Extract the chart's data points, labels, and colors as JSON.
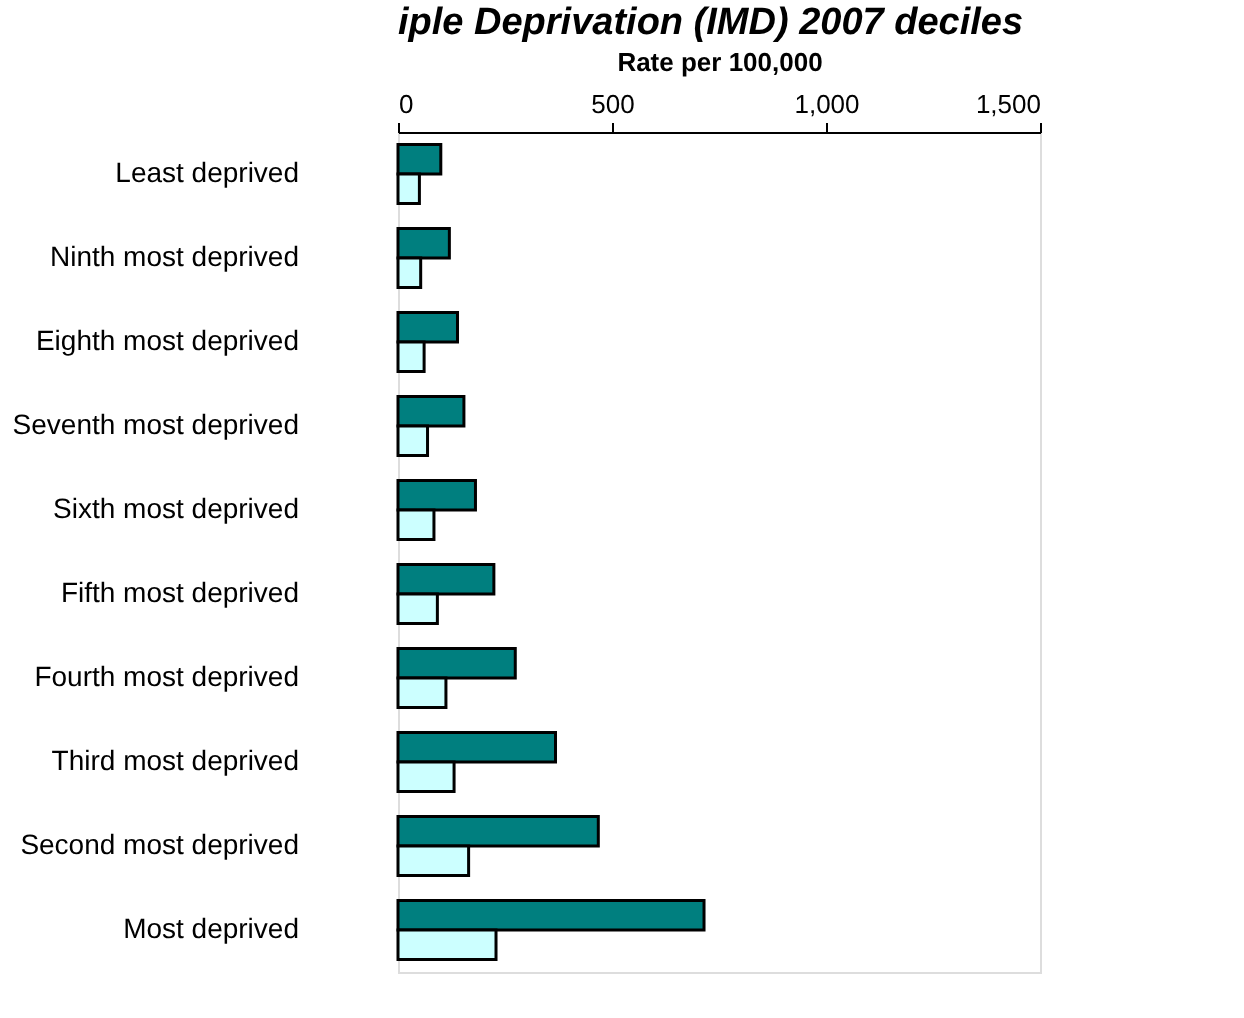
{
  "chart_data": {
    "type": "bar",
    "orientation": "horizontal",
    "title": "iple Deprivation (IMD) 2007 deciles",
    "xlabel": "Rate per 100,000",
    "categories": [
      "Least deprived",
      "Ninth most deprived",
      "Eighth most deprived",
      "Seventh most deprived",
      "Sixth most deprived",
      "Fifth most deprived",
      "Fourth most deprived",
      "Third most deprived",
      "Second most deprived",
      "Most deprived"
    ],
    "series": [
      {
        "color": "#007f7f",
        "values": [
          100,
          120,
          139,
          154,
          181,
          224,
          274,
          368,
          468,
          715
        ]
      },
      {
        "color": "#ccffff",
        "values": [
          50,
          53,
          61,
          69,
          84,
          92,
          112,
          131,
          165,
          229
        ]
      }
    ],
    "xlim": [
      0,
      1500
    ],
    "xticks": [
      0,
      {
        "value": 500,
        "label": "500"
      },
      {
        "value": 1000,
        "label": "1,000"
      },
      {
        "value": 1500,
        "label": "1,500"
      }
    ],
    "grid": false,
    "legend": false
  }
}
